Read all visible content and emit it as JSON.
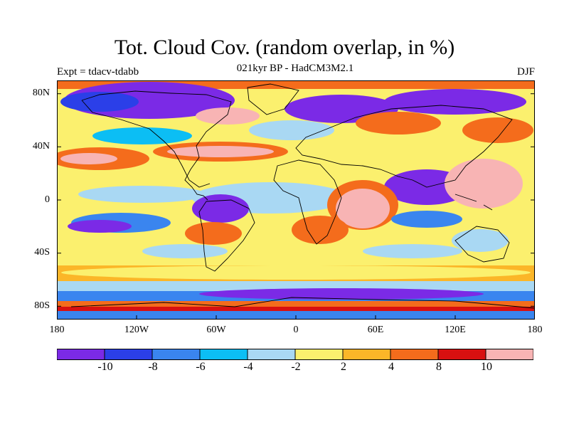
{
  "header": {
    "title": "Tot. Cloud Cov. (random overlap, in %)",
    "subtitle": "021kyr BP - HadCM3M2.1",
    "experiment": "Expt = tdacv-tdabb",
    "season": "DJF"
  },
  "map": {
    "lat_labels": [
      "80N",
      "40N",
      "0",
      "40S",
      "80S"
    ],
    "lon_labels": [
      "180",
      "120W",
      "60W",
      "0",
      "60E",
      "120E",
      "180"
    ]
  },
  "colorbar": {
    "colors": [
      "#7b2ae6",
      "#2b3fe8",
      "#3a85ef",
      "#0cbef4",
      "#a9d8f3",
      "#fbf06e",
      "#fbb628",
      "#f46c1c",
      "#d81010",
      "#f8b4b4"
    ],
    "labels": [
      "-10",
      "-8",
      "-6",
      "-4",
      "-2",
      "2",
      "4",
      "8",
      "10"
    ]
  }
}
